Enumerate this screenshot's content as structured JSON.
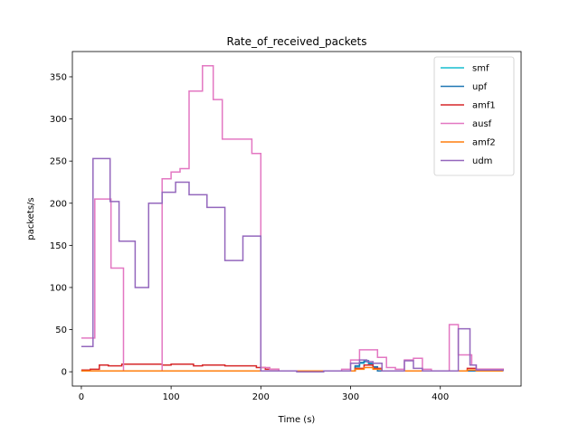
{
  "chart_data": {
    "type": "line",
    "title": "Rate_of_received_packets",
    "xlabel": "Time (s)",
    "ylabel": "packets/s",
    "xlim": [
      -10,
      490
    ],
    "ylim": [
      -17,
      380
    ],
    "x_ticks": [
      0,
      100,
      200,
      300,
      400
    ],
    "y_ticks": [
      0,
      50,
      100,
      150,
      200,
      250,
      300,
      350
    ],
    "step": true,
    "grid": false,
    "legend_position": "top-right",
    "series": [
      {
        "name": "smf",
        "color": "#17becf",
        "points": [
          [
            0,
            1
          ],
          [
            300,
            1
          ],
          [
            305,
            6
          ],
          [
            310,
            10
          ],
          [
            315,
            12
          ],
          [
            320,
            9
          ],
          [
            325,
            5
          ],
          [
            330,
            1
          ],
          [
            470,
            1
          ]
        ]
      },
      {
        "name": "upf",
        "color": "#1f77b4",
        "points": [
          [
            0,
            1
          ],
          [
            300,
            1
          ],
          [
            305,
            7
          ],
          [
            310,
            11
          ],
          [
            315,
            13
          ],
          [
            320,
            10
          ],
          [
            325,
            6
          ],
          [
            330,
            1
          ],
          [
            470,
            1
          ]
        ]
      },
      {
        "name": "amf1",
        "color": "#d62728",
        "points": [
          [
            0,
            2
          ],
          [
            10,
            3
          ],
          [
            20,
            8
          ],
          [
            30,
            7
          ],
          [
            45,
            9
          ],
          [
            60,
            9
          ],
          [
            75,
            9
          ],
          [
            90,
            8
          ],
          [
            100,
            9
          ],
          [
            115,
            9
          ],
          [
            125,
            7
          ],
          [
            135,
            8
          ],
          [
            145,
            8
          ],
          [
            160,
            7
          ],
          [
            180,
            7
          ],
          [
            195,
            5
          ],
          [
            205,
            3
          ],
          [
            220,
            1
          ],
          [
            300,
            1
          ],
          [
            305,
            4
          ],
          [
            315,
            8
          ],
          [
            325,
            4
          ],
          [
            335,
            1
          ],
          [
            420,
            1
          ],
          [
            430,
            4
          ],
          [
            440,
            3
          ],
          [
            470,
            2
          ]
        ]
      },
      {
        "name": "ausf",
        "color": "#e377c2",
        "points": [
          [
            0,
            40
          ],
          [
            15,
            205
          ],
          [
            30,
            205
          ],
          [
            33,
            123
          ],
          [
            45,
            123
          ],
          [
            47,
            1
          ],
          [
            87,
            1
          ],
          [
            90,
            229
          ],
          [
            100,
            237
          ],
          [
            110,
            241
          ],
          [
            120,
            333
          ],
          [
            135,
            363
          ],
          [
            147,
            323
          ],
          [
            157,
            276
          ],
          [
            175,
            276
          ],
          [
            190,
            259
          ],
          [
            200,
            5
          ],
          [
            210,
            3
          ],
          [
            220,
            1
          ],
          [
            280,
            1
          ],
          [
            290,
            3
          ],
          [
            300,
            14
          ],
          [
            310,
            26
          ],
          [
            330,
            17
          ],
          [
            340,
            5
          ],
          [
            350,
            3
          ],
          [
            360,
            14
          ],
          [
            370,
            16
          ],
          [
            380,
            3
          ],
          [
            390,
            1
          ],
          [
            408,
            1
          ],
          [
            410,
            56
          ],
          [
            420,
            20
          ],
          [
            435,
            8
          ],
          [
            440,
            3
          ],
          [
            470,
            2
          ]
        ]
      },
      {
        "name": "amf2",
        "color": "#ff7f0e",
        "points": [
          [
            0,
            1
          ],
          [
            300,
            1
          ],
          [
            305,
            3
          ],
          [
            315,
            5
          ],
          [
            325,
            3
          ],
          [
            335,
            1
          ],
          [
            420,
            1
          ],
          [
            430,
            2
          ],
          [
            440,
            1
          ],
          [
            470,
            1
          ]
        ]
      },
      {
        "name": "udm",
        "color": "#9467bd",
        "points": [
          [
            0,
            30
          ],
          [
            13,
            253
          ],
          [
            32,
            202
          ],
          [
            42,
            155
          ],
          [
            60,
            100
          ],
          [
            75,
            200
          ],
          [
            90,
            213
          ],
          [
            105,
            225
          ],
          [
            120,
            210
          ],
          [
            140,
            195
          ],
          [
            160,
            132
          ],
          [
            180,
            161
          ],
          [
            200,
            1
          ],
          [
            240,
            0
          ],
          [
            270,
            1
          ],
          [
            290,
            1
          ],
          [
            300,
            10
          ],
          [
            310,
            14
          ],
          [
            318,
            12
          ],
          [
            325,
            10
          ],
          [
            335,
            1
          ],
          [
            350,
            1
          ],
          [
            360,
            13
          ],
          [
            370,
            4
          ],
          [
            380,
            1
          ],
          [
            418,
            1
          ],
          [
            420,
            51
          ],
          [
            433,
            8
          ],
          [
            440,
            2
          ],
          [
            470,
            1
          ]
        ]
      }
    ]
  }
}
